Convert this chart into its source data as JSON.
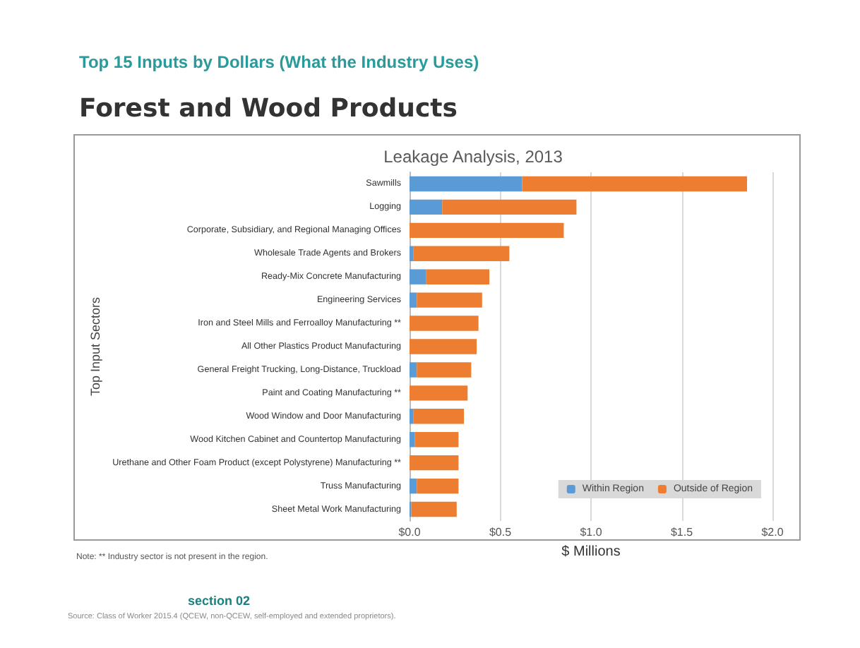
{
  "chart_data": {
    "type": "bar",
    "orientation": "horizontal",
    "stacked": true,
    "title": "Leakage Analysis, 2013",
    "xlabel": "$ Millions",
    "ylabel": "Top Input Sectors",
    "annotations": [
      "Top 15 Inputs by Dollars (What the Industry Uses)",
      "Forest and Wood Products",
      "Note: ** Industry sector is not present in the region.",
      "section 02",
      "Source: Class of Worker 2015.4 (QCEW, non-QCEW, self-employed and extended proprietors)."
    ],
    "categories": [
      "Sawmills",
      "Logging",
      "Corporate, Subsidiary, and Regional Managing Offices",
      "Wholesale Trade Agents and Brokers",
      "Ready-Mix Concrete Manufacturing",
      "Engineering Services",
      "Iron and Steel Mills and Ferroalloy Manufacturing **",
      "All Other Plastics Product Manufacturing",
      "General Freight Trucking, Long-Distance, Truckload",
      "Paint and Coating Manufacturing **",
      "Wood Window and Door Manufacturing",
      "Wood Kitchen Cabinet and Countertop Manufacturing",
      "Urethane and Other Foam Product (except Polystyrene) Manufacturing **",
      "Truss Manufacturing",
      "Sheet Metal Work Manufacturing"
    ],
    "series": [
      {
        "name": "Within Region",
        "color": "#5b9bd5",
        "values": [
          0.62,
          0.18,
          0,
          0.02,
          0.09,
          0.04,
          0,
          0,
          0.04,
          0,
          0.02,
          0.03,
          0,
          0.04,
          0.01
        ]
      },
      {
        "name": "Outside of Region",
        "color": "#ed7d31",
        "values": [
          1.24,
          0.74,
          0.85,
          0.53,
          0.35,
          0.36,
          0.38,
          0.37,
          0.3,
          0.32,
          0.28,
          0.24,
          0.27,
          0.23,
          0.25
        ]
      }
    ],
    "xlim": [
      0,
      2
    ],
    "xticks": [
      {
        "value": 0,
        "label": "$0.0"
      },
      {
        "value": 0.5,
        "label": "$0.5"
      },
      {
        "value": 1,
        "label": "$1.0"
      },
      {
        "value": 1.5,
        "label": "$1.5"
      },
      {
        "value": 2,
        "label": "$2.0"
      }
    ],
    "grid": "x",
    "legend": "bottom right"
  }
}
